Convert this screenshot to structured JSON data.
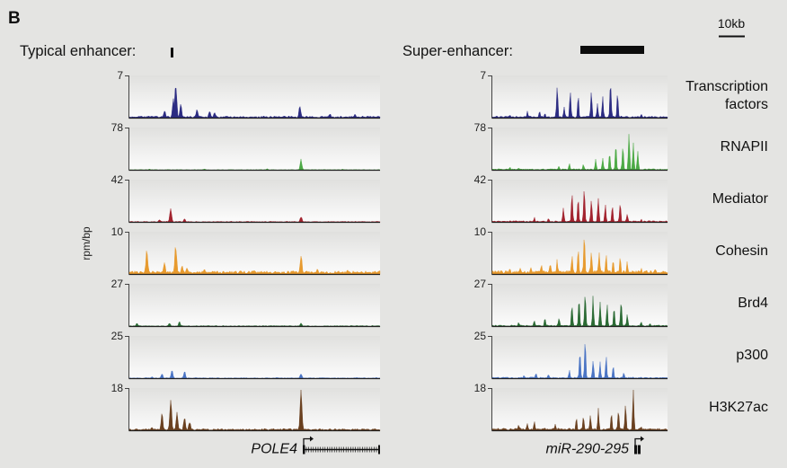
{
  "figure": {
    "panel_label": "B",
    "scale_bar_label": "10kb",
    "ylabel": "rpm/bp"
  },
  "chart_data": {
    "type": "area",
    "ylabel": "rpm/bp",
    "regions": [
      {
        "heading": "Typical enhancer:",
        "gene_label": "POLE4",
        "gene_structure": "long-gene-with-tss-arrow",
        "x_range": [
          0,
          100
        ],
        "peaks": [
          [
            [
              17.5,
              0.45
            ],
            [
              18.5,
              1.0
            ],
            [
              20.5,
              0.35
            ],
            [
              14,
              0.2
            ],
            [
              27,
              0.25
            ],
            [
              32,
              0.2
            ],
            [
              34,
              0.15
            ],
            [
              68,
              0.28
            ],
            [
              80,
              0.12
            ],
            [
              90,
              0.1
            ]
          ],
          [
            [
              68.5,
              0.26
            ],
            [
              30,
              0.04
            ],
            [
              8,
              0.03
            ],
            [
              55,
              0.04
            ],
            [
              85,
              0.03
            ]
          ],
          [
            [
              16.5,
              0.35
            ],
            [
              12,
              0.08
            ],
            [
              22,
              0.1
            ],
            [
              68.5,
              0.15
            ]
          ],
          [
            [
              7,
              0.62
            ],
            [
              18.5,
              0.72
            ],
            [
              14,
              0.3
            ],
            [
              21,
              0.22
            ],
            [
              23,
              0.18
            ],
            [
              30,
              0.14
            ],
            [
              68.5,
              0.5
            ],
            [
              75,
              0.15
            ],
            [
              87,
              0.12
            ],
            [
              50,
              0.1
            ]
          ],
          [
            [
              20,
              0.12
            ],
            [
              16,
              0.1
            ],
            [
              3,
              0.09
            ],
            [
              68.5,
              0.1
            ]
          ],
          [
            [
              17,
              0.2
            ],
            [
              22,
              0.18
            ],
            [
              13,
              0.12
            ],
            [
              68.5,
              0.13
            ],
            [
              9,
              0.05
            ]
          ],
          [
            [
              16.5,
              0.72
            ],
            [
              13,
              0.42
            ],
            [
              19,
              0.45
            ],
            [
              22,
              0.35
            ],
            [
              24,
              0.25
            ],
            [
              9,
              0.1
            ],
            [
              68.5,
              1.0
            ]
          ]
        ],
        "track_noise": [
          0.04,
          0.015,
          0.02,
          0.07,
          0.02,
          0.02,
          0.04
        ]
      },
      {
        "heading": "Super-enhancer:",
        "gene_label": "miR-290-295",
        "gene_structure": "short-gene-with-tss-arrow",
        "x_range": [
          0,
          100
        ],
        "peaks": [
          [
            [
              37,
              0.85
            ],
            [
              44.5,
              0.7
            ],
            [
              49,
              0.55
            ],
            [
              56.5,
              0.78
            ],
            [
              63,
              0.5
            ],
            [
              67.5,
              0.95
            ],
            [
              71.5,
              0.6
            ],
            [
              41,
              0.3
            ],
            [
              60,
              0.35
            ],
            [
              27,
              0.2
            ],
            [
              20,
              0.16
            ],
            [
              30,
              0.14
            ],
            [
              85,
              0.1
            ],
            [
              10,
              0.08
            ]
          ],
          [
            [
              67,
              0.45
            ],
            [
              70.5,
              0.6
            ],
            [
              74.5,
              0.68
            ],
            [
              78,
              0.95
            ],
            [
              80.5,
              0.7
            ],
            [
              83,
              0.48
            ],
            [
              63,
              0.3
            ],
            [
              59,
              0.25
            ],
            [
              52,
              0.15
            ],
            [
              44,
              0.2
            ],
            [
              38,
              0.12
            ],
            [
              10,
              0.08
            ],
            [
              15,
              0.07
            ]
          ],
          [
            [
              40.5,
              0.4
            ],
            [
              45.5,
              0.75
            ],
            [
              49,
              0.6
            ],
            [
              52.5,
              1.0
            ],
            [
              56.5,
              0.62
            ],
            [
              60.5,
              0.7
            ],
            [
              64.5,
              0.5
            ],
            [
              68.5,
              0.45
            ],
            [
              73,
              0.55
            ],
            [
              77,
              0.25
            ],
            [
              24,
              0.12
            ],
            [
              32,
              0.1
            ],
            [
              85,
              0.08
            ]
          ],
          [
            [
              52.5,
              1.0
            ],
            [
              45.5,
              0.55
            ],
            [
              49,
              0.68
            ],
            [
              56.5,
              0.58
            ],
            [
              61,
              0.55
            ],
            [
              65,
              0.5
            ],
            [
              69,
              0.4
            ],
            [
              73,
              0.48
            ],
            [
              28,
              0.25
            ],
            [
              33,
              0.3
            ],
            [
              37,
              0.35
            ],
            [
              22,
              0.2
            ],
            [
              16,
              0.18
            ],
            [
              10,
              0.15
            ],
            [
              77,
              0.3
            ],
            [
              85,
              0.15
            ],
            [
              93,
              0.14
            ],
            [
              5,
              0.12
            ]
          ],
          [
            [
              45.5,
              0.6
            ],
            [
              49.5,
              0.75
            ],
            [
              53,
              0.95
            ],
            [
              57.5,
              0.72
            ],
            [
              61.5,
              0.65
            ],
            [
              65.5,
              0.55
            ],
            [
              69.5,
              0.5
            ],
            [
              73.5,
              0.7
            ],
            [
              77,
              0.3
            ],
            [
              38,
              0.25
            ],
            [
              30,
              0.22
            ],
            [
              24,
              0.18
            ],
            [
              15,
              0.12
            ],
            [
              85,
              0.12
            ],
            [
              90,
              0.08
            ]
          ],
          [
            [
              50,
              0.7
            ],
            [
              53,
              1.0
            ],
            [
              57.5,
              0.48
            ],
            [
              61.5,
              0.4
            ],
            [
              65,
              0.52
            ],
            [
              69,
              0.35
            ],
            [
              75,
              0.15
            ],
            [
              25,
              0.15
            ],
            [
              32,
              0.12
            ],
            [
              44,
              0.2
            ],
            [
              18,
              0.08
            ]
          ],
          [
            [
              80.5,
              1.0
            ],
            [
              76,
              0.68
            ],
            [
              72,
              0.6
            ],
            [
              68,
              0.45
            ],
            [
              60.5,
              0.55
            ],
            [
              56,
              0.42
            ],
            [
              52,
              0.38
            ],
            [
              48,
              0.3
            ],
            [
              24,
              0.25
            ],
            [
              20,
              0.2
            ],
            [
              15,
              0.18
            ],
            [
              36,
              0.18
            ],
            [
              85,
              0.12
            ]
          ]
        ],
        "track_noise": [
          0.04,
          0.03,
          0.03,
          0.08,
          0.03,
          0.03,
          0.05
        ]
      }
    ],
    "tracks": [
      {
        "name": "Transcription factors",
        "label_lines": [
          "Transcription",
          "factors"
        ],
        "ymax": 7,
        "color": "#2b2b82"
      },
      {
        "name": "RNAPII",
        "label_lines": [
          "RNAPII"
        ],
        "ymax": 78,
        "color": "#4caa45"
      },
      {
        "name": "Mediator",
        "label_lines": [
          "Mediator"
        ],
        "ymax": 42,
        "color": "#a2232e"
      },
      {
        "name": "Cohesin",
        "label_lines": [
          "Cohesin"
        ],
        "ymax": 10,
        "color": "#e79a2e"
      },
      {
        "name": "Brd4",
        "label_lines": [
          "Brd4"
        ],
        "ymax": 27,
        "color": "#2a6a33"
      },
      {
        "name": "p300",
        "label_lines": [
          "p300"
        ],
        "ymax": 25,
        "color": "#4a74c4"
      },
      {
        "name": "H3K27ac",
        "label_lines": [
          "H3K27ac"
        ],
        "ymax": 18,
        "color": "#6a401f"
      }
    ],
    "grid": false
  }
}
